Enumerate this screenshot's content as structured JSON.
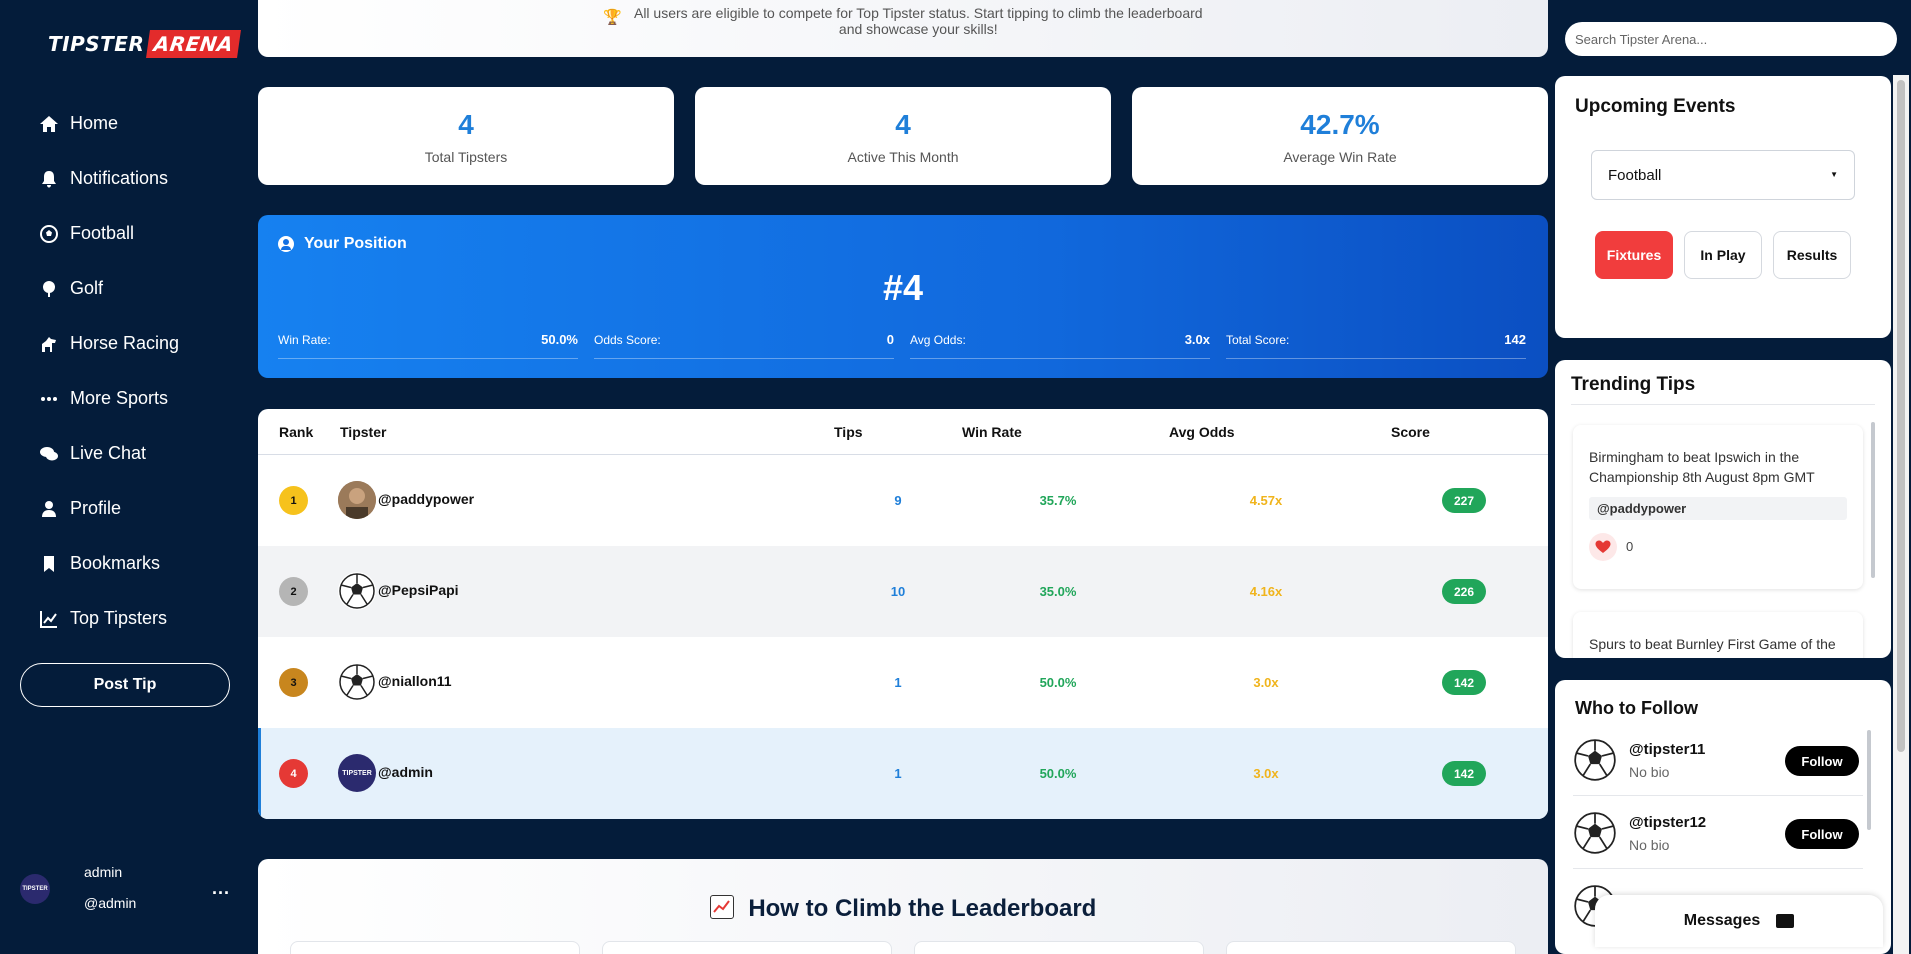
{
  "brand": {
    "part1": "TIPSTER",
    "part2": "ARENA"
  },
  "nav": [
    {
      "label": "Home",
      "icon": "home-icon"
    },
    {
      "label": "Notifications",
      "icon": "bell-icon"
    },
    {
      "label": "Football",
      "icon": "football-icon"
    },
    {
      "label": "Golf",
      "icon": "golf-icon"
    },
    {
      "label": "Horse Racing",
      "icon": "horse-icon"
    },
    {
      "label": "More Sports",
      "icon": "more-icon"
    },
    {
      "label": "Live Chat",
      "icon": "chat-icon"
    },
    {
      "label": "Profile",
      "icon": "user-icon"
    },
    {
      "label": "Bookmarks",
      "icon": "bookmark-icon"
    },
    {
      "label": "Top Tipsters",
      "icon": "chart-line-icon"
    }
  ],
  "post_tip": "Post Tip",
  "current_user": {
    "name": "admin",
    "handle": "@admin",
    "more": "..."
  },
  "banner": {
    "line1": "All users are eligible to compete for Top Tipster status. Start tipping to climb the leaderboard",
    "line2": "and showcase your skills!"
  },
  "stats": [
    {
      "value": "4",
      "label": "Total Tipsters"
    },
    {
      "value": "4",
      "label": "Active This Month"
    },
    {
      "value": "42.7%",
      "label": "Average Win Rate"
    }
  ],
  "position": {
    "title": "Your Position",
    "rank": "#4",
    "items": [
      {
        "label": "Win Rate:",
        "value": "50.0%"
      },
      {
        "label": "Odds Score:",
        "value": "0"
      },
      {
        "label": "Avg Odds:",
        "value": "3.0x"
      },
      {
        "label": "Total Score:",
        "value": "142"
      }
    ]
  },
  "table": {
    "headers": {
      "rank": "Rank",
      "tipster": "Tipster",
      "tips": "Tips",
      "win_rate": "Win Rate",
      "avg_odds": "Avg Odds",
      "score": "Score"
    },
    "rows": [
      {
        "rank": "1",
        "name": "@paddypower",
        "tips": "9",
        "win_rate": "35.7%",
        "avg_odds": "4.57x",
        "score": "227"
      },
      {
        "rank": "2",
        "name": "@PepsiPapi",
        "tips": "10",
        "win_rate": "35.0%",
        "avg_odds": "4.16x",
        "score": "226"
      },
      {
        "rank": "3",
        "name": "@niallon11",
        "tips": "1",
        "win_rate": "50.0%",
        "avg_odds": "3.0x",
        "score": "142"
      },
      {
        "rank": "4",
        "name": "@admin",
        "tips": "1",
        "win_rate": "50.0%",
        "avg_odds": "3.0x",
        "score": "142"
      }
    ]
  },
  "climb": {
    "title": "How to Climb the Leaderboard"
  },
  "search": {
    "placeholder": "Search Tipster Arena..."
  },
  "events": {
    "title": "Upcoming Events",
    "sport": "Football",
    "buttons": [
      "Fixtures",
      "In Play",
      "Results"
    ]
  },
  "trending": {
    "title": "Trending Tips",
    "tips": [
      {
        "text": "Birmingham to beat Ipswich in the Championship 8th August 8pm GMT",
        "user": "@paddypower",
        "likes": "0"
      },
      {
        "text": "Spurs to beat Burnley First Game of the"
      }
    ]
  },
  "follow": {
    "title": "Who to Follow",
    "users": [
      {
        "name": "@tipster11",
        "bio": "No bio",
        "button": "Follow"
      },
      {
        "name": "@tipster12",
        "bio": "No bio",
        "button": "Follow"
      }
    ]
  },
  "messages": {
    "label": "Messages"
  },
  "colors": {
    "navy": "#041c3a",
    "blue": "#1f7fd9",
    "green": "#21a65a",
    "gold": "#f0b41c",
    "red": "#f13d3d"
  }
}
